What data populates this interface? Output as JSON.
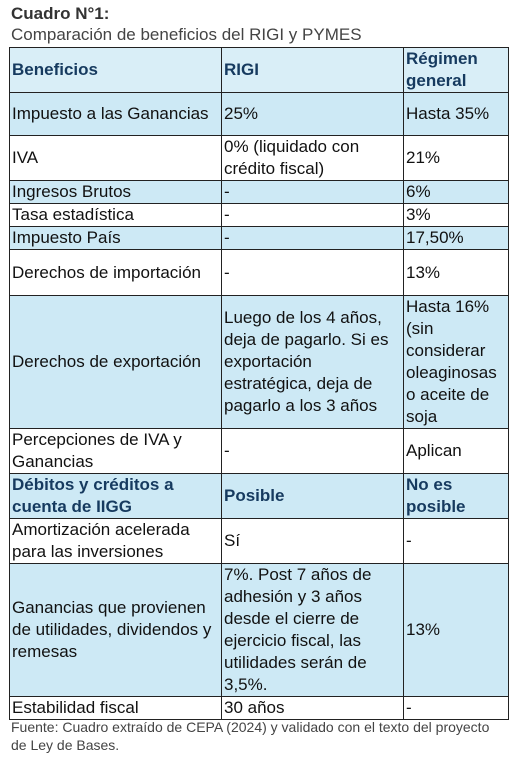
{
  "header": {
    "title": "Cuadro N°1:",
    "subtitle": "Comparación de beneficios del RIGI y PYMES"
  },
  "table": {
    "columns": [
      "Beneficios",
      "RIGI",
      "Régimen general"
    ],
    "rows": [
      [
        "Impuesto a las Ganancias",
        "25%",
        "Hasta 35%"
      ],
      [
        "IVA",
        "0% (liquidado con crédito fiscal)",
        "21%"
      ],
      [
        "Ingresos Brutos",
        "-",
        "6%"
      ],
      [
        "Tasa estadística",
        "-",
        "3%"
      ],
      [
        "Impuesto País",
        "-",
        "17,50%"
      ],
      [
        "Derechos de importación",
        "-",
        "13%"
      ],
      [
        "Derechos de exportación",
        "Luego de los 4 años, deja de pagarlo. Si es exportación estratégica, deja de pagarlo a los 3 años",
        "Hasta 16% (sin considerar oleaginosas o aceite de soja"
      ],
      [
        "Percepciones de IVA y Ganancias",
        "-",
        "Aplican"
      ],
      [
        "Débitos y créditos a cuenta de IIGG",
        "Posible",
        "No es posible"
      ],
      [
        "Amortización acelerada para las inversiones",
        "Sí",
        "-"
      ],
      [
        "Ganancias que provienen de utilidades, dividendos y remesas",
        "7%. Post 7 años de adhesión y 3 años desde el cierre de ejercicio fiscal, las utilidades serán de 3,5%.",
        "13%"
      ],
      [
        "Estabilidad fiscal",
        "30 años",
        "-"
      ]
    ]
  },
  "footer": "Fuente: Cuadro extraído de CEPA (2024) y validado con el texto del proyecto de Ley de Bases."
}
